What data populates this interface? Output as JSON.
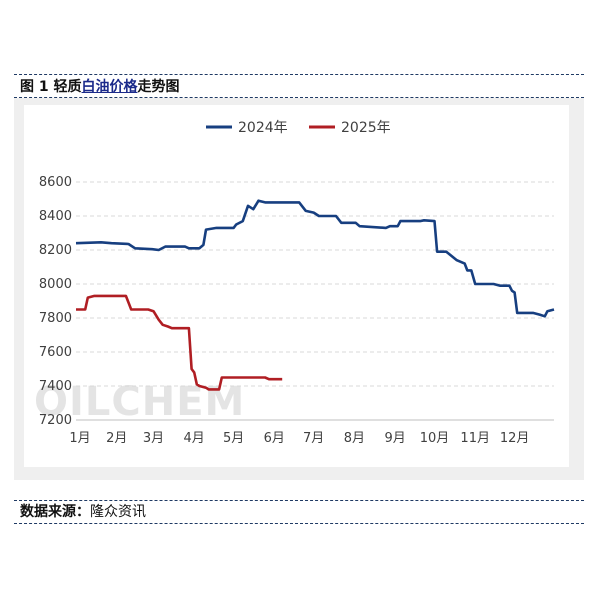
{
  "caption": {
    "prefix": "图 1  轻质",
    "link": "白油价格",
    "suffix": "走势图"
  },
  "source": {
    "label": "数据来源：",
    "value": "隆众资讯"
  },
  "watermark": "OILCHEM",
  "colors": {
    "series_2024": "#173f80",
    "series_2025": "#b01e23",
    "grid": "#d9d9d9",
    "axis_text": "#404040"
  },
  "chart_data": {
    "type": "line",
    "x_ticks": [
      "1月",
      "2月",
      "3月",
      "4月",
      "5月",
      "6月",
      "7月",
      "8月",
      "9月",
      "10月",
      "11月",
      "12月"
    ],
    "xlim": [
      "01-01",
      "12-31"
    ],
    "ylim": [
      7200,
      8600
    ],
    "y_ticks": [
      7200,
      7400,
      7600,
      7800,
      8000,
      8200,
      8400,
      8600
    ],
    "grid": true,
    "legend_position": "top",
    "series": [
      {
        "name": "2024年",
        "points": [
          [
            "01-01",
            8240
          ],
          [
            "01-20",
            8245
          ],
          [
            "01-28",
            8240
          ],
          [
            "02-10",
            8235
          ],
          [
            "02-15",
            8210
          ],
          [
            "02-28",
            8205
          ],
          [
            "03-05",
            8200
          ],
          [
            "03-10",
            8220
          ],
          [
            "03-25",
            8220
          ],
          [
            "03-28",
            8210
          ],
          [
            "04-05",
            8210
          ],
          [
            "04-08",
            8230
          ],
          [
            "04-10",
            8320
          ],
          [
            "04-18",
            8330
          ],
          [
            "05-01",
            8330
          ],
          [
            "05-03",
            8350
          ],
          [
            "05-08",
            8370
          ],
          [
            "05-12",
            8460
          ],
          [
            "05-16",
            8440
          ],
          [
            "05-20",
            8490
          ],
          [
            "05-25",
            8480
          ],
          [
            "06-20",
            8480
          ],
          [
            "06-25",
            8430
          ],
          [
            "07-01",
            8420
          ],
          [
            "07-05",
            8400
          ],
          [
            "07-18",
            8400
          ],
          [
            "07-22",
            8360
          ],
          [
            "08-02",
            8360
          ],
          [
            "08-05",
            8340
          ],
          [
            "08-25",
            8330
          ],
          [
            "08-28",
            8340
          ],
          [
            "09-03",
            8340
          ],
          [
            "09-05",
            8370
          ],
          [
            "09-20",
            8370
          ],
          [
            "09-23",
            8375
          ],
          [
            "10-01",
            8370
          ],
          [
            "10-03",
            8190
          ],
          [
            "10-10",
            8190
          ],
          [
            "10-18",
            8140
          ],
          [
            "10-24",
            8120
          ],
          [
            "10-26",
            8080
          ],
          [
            "10-29",
            8080
          ],
          [
            "11-01",
            8000
          ],
          [
            "11-15",
            8000
          ],
          [
            "11-20",
            7990
          ],
          [
            "11-27",
            7990
          ],
          [
            "11-29",
            7960
          ],
          [
            "12-01",
            7950
          ],
          [
            "12-03",
            7830
          ],
          [
            "12-15",
            7830
          ],
          [
            "12-20",
            7820
          ],
          [
            "12-24",
            7810
          ],
          [
            "12-26",
            7840
          ],
          [
            "12-31",
            7850
          ]
        ]
      },
      {
        "name": "2025年",
        "points": [
          [
            "01-01",
            7850
          ],
          [
            "01-08",
            7850
          ],
          [
            "01-10",
            7920
          ],
          [
            "01-15",
            7930
          ],
          [
            "02-08",
            7930
          ],
          [
            "02-12",
            7850
          ],
          [
            "02-25",
            7850
          ],
          [
            "03-01",
            7840
          ],
          [
            "03-05",
            7790
          ],
          [
            "03-08",
            7760
          ],
          [
            "03-12",
            7750
          ],
          [
            "03-15",
            7740
          ],
          [
            "03-28",
            7740
          ],
          [
            "03-30",
            7500
          ],
          [
            "04-01",
            7480
          ],
          [
            "04-03",
            7410
          ],
          [
            "04-05",
            7400
          ],
          [
            "04-10",
            7390
          ],
          [
            "04-12",
            7380
          ],
          [
            "04-20",
            7380
          ],
          [
            "04-22",
            7450
          ],
          [
            "05-25",
            7450
          ],
          [
            "05-28",
            7440
          ],
          [
            "06-01",
            7440
          ],
          [
            "06-07",
            7440
          ]
        ]
      }
    ]
  }
}
